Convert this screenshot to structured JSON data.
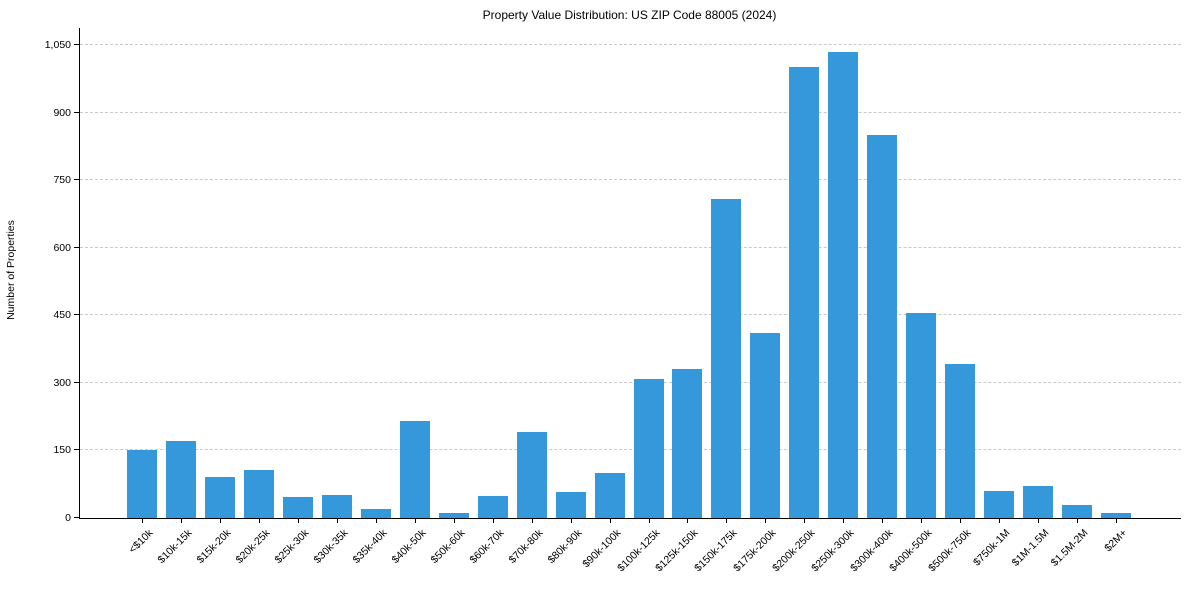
{
  "chart_data": {
    "type": "bar",
    "title": "Property Value Distribution: US ZIP Code 88005 (2024)",
    "xlabel": "",
    "ylabel": "Number of Properties",
    "categories": [
      "<$10k",
      "$10k-15k",
      "$15k-20k",
      "$20k-25k",
      "$25k-30k",
      "$30k-35k",
      "$35k-40k",
      "$40k-50k",
      "$50k-60k",
      "$60k-70k",
      "$70k-80k",
      "$80k-90k",
      "$90k-100k",
      "$100k-125k",
      "$125k-150k",
      "$150k-175k",
      "$175k-200k",
      "$200k-250k",
      "$250k-300k",
      "$300k-400k",
      "$400k-500k",
      "$500k-750k",
      "$750k-1M",
      "$1M-1.5M",
      "$1.5M-2M",
      "$2M+"
    ],
    "values": [
      152,
      171,
      90,
      106,
      47,
      52,
      21,
      215,
      12,
      48,
      191,
      57,
      101,
      309,
      331,
      709,
      410,
      1001,
      1034,
      851,
      456,
      342,
      60,
      71,
      28,
      12
    ],
    "yticks": [
      0,
      150,
      300,
      450,
      600,
      750,
      900,
      1050
    ],
    "ytick_labels": [
      "0",
      "150",
      "300",
      "450",
      "600",
      "750",
      "900",
      "1,050"
    ],
    "ylim": [
      0,
      1088
    ],
    "x_tick_rotation_deg": 45,
    "grid": "horizontal-dashed",
    "legend": "none",
    "colors": {
      "bar": "#3498db",
      "gridline": "#c9c9c9",
      "axis": "#000000",
      "text": "#000000",
      "background": "#ffffff"
    }
  }
}
